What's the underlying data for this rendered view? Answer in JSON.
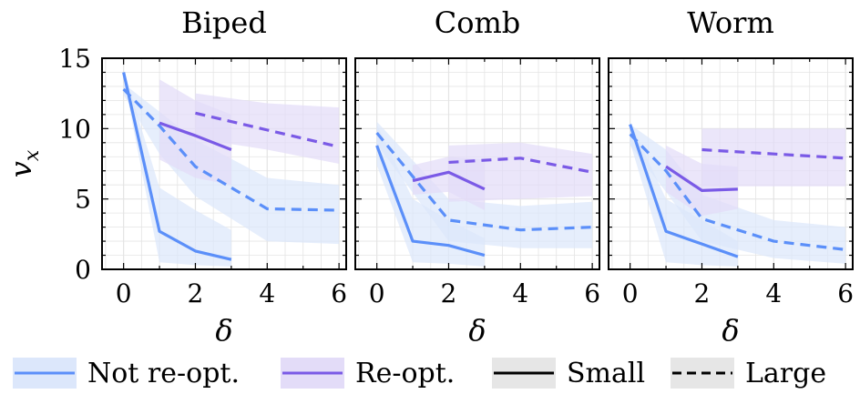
{
  "chart_data": {
    "type": "line",
    "ylabel": "v",
    "ylabel_sub": "x",
    "xlabel": "δ",
    "xlim": [
      -0.6,
      6.2
    ],
    "ylim": [
      0,
      15
    ],
    "xticks": [
      "0",
      "2",
      "4",
      "6"
    ],
    "yticks": [
      "0",
      "5",
      "10",
      "15"
    ],
    "grid": true,
    "legend_position": "bottom",
    "colors": {
      "not_reopt": "#5b8ff9",
      "reopt": "#7a5ae6",
      "not_reopt_band": "#dce7fb",
      "reopt_band": "#e3dcf8",
      "legend_box": "#e6e6e6"
    },
    "legend": {
      "not_reopt": "Not re-opt.",
      "reopt": "Re-opt.",
      "small": "Small",
      "large": "Large"
    },
    "panels": [
      {
        "title": "Biped",
        "series": [
          {
            "group": "not_reopt",
            "size": "small",
            "x": [
              0,
              1,
              2,
              3
            ],
            "y": [
              14.0,
              2.7,
              1.3,
              0.7
            ],
            "upper": [
              14.2,
              5.8,
              4.2,
              2.8
            ],
            "lower": [
              13.6,
              0.5,
              0.3,
              0.2
            ]
          },
          {
            "group": "not_reopt",
            "size": "large",
            "x": [
              0,
              1,
              2,
              4,
              6
            ],
            "y": [
              12.8,
              10.2,
              7.3,
              4.3,
              4.2
            ],
            "upper": [
              13.2,
              11.2,
              9.2,
              6.5,
              6.0
            ],
            "lower": [
              12.4,
              8.2,
              5.2,
              2.0,
              1.8
            ]
          },
          {
            "group": "reopt",
            "size": "small",
            "x": [
              1,
              2,
              3
            ],
            "y": [
              10.4,
              9.5,
              8.5
            ],
            "upper": [
              13.5,
              12.0,
              11.0
            ],
            "lower": [
              7.8,
              6.5,
              6.0
            ]
          },
          {
            "group": "reopt",
            "size": "large",
            "x": [
              2,
              4,
              6
            ],
            "y": [
              11.1,
              9.9,
              8.7
            ],
            "upper": [
              12.5,
              11.8,
              11.5
            ],
            "lower": [
              9.3,
              8.5,
              7.5
            ]
          }
        ]
      },
      {
        "title": "Comb",
        "series": [
          {
            "group": "not_reopt",
            "size": "small",
            "x": [
              0,
              1,
              2,
              3
            ],
            "y": [
              8.8,
              2.0,
              1.7,
              1.0
            ],
            "upper": [
              10.3,
              5.0,
              3.5,
              2.2
            ],
            "lower": [
              7.4,
              0.5,
              0.4,
              0.2
            ]
          },
          {
            "group": "not_reopt",
            "size": "large",
            "x": [
              0,
              2,
              4,
              6
            ],
            "y": [
              9.7,
              3.5,
              2.8,
              3.0
            ],
            "upper": [
              10.5,
              5.0,
              4.5,
              4.8
            ],
            "lower": [
              8.9,
              2.0,
              1.5,
              1.5
            ]
          },
          {
            "group": "reopt",
            "size": "small",
            "x": [
              1,
              2,
              3
            ],
            "y": [
              6.3,
              6.9,
              5.7
            ],
            "upper": [
              7.4,
              8.0,
              7.8
            ],
            "lower": [
              5.3,
              5.5,
              4.2
            ]
          },
          {
            "group": "reopt",
            "size": "large",
            "x": [
              2,
              4,
              6
            ],
            "y": [
              7.6,
              7.9,
              6.9
            ],
            "upper": [
              8.8,
              9.0,
              8.2
            ],
            "lower": [
              4.8,
              5.0,
              5.2
            ]
          }
        ]
      },
      {
        "title": "Worm",
        "series": [
          {
            "group": "not_reopt",
            "size": "small",
            "x": [
              0,
              1,
              2,
              3
            ],
            "y": [
              10.3,
              2.7,
              1.8,
              0.9
            ],
            "upper": [
              10.5,
              5.0,
              3.5,
              2.0
            ],
            "lower": [
              9.0,
              0.5,
              0.3,
              0.2
            ]
          },
          {
            "group": "not_reopt",
            "size": "large",
            "x": [
              0,
              1,
              2,
              4,
              6
            ],
            "y": [
              9.6,
              7.0,
              3.6,
              2.0,
              1.4
            ],
            "upper": [
              10.3,
              8.5,
              5.3,
              3.5,
              3.0
            ],
            "lower": [
              8.8,
              5.5,
              2.0,
              0.8,
              0.4
            ]
          },
          {
            "group": "reopt",
            "size": "small",
            "x": [
              1,
              2,
              3
            ],
            "y": [
              7.3,
              5.6,
              5.7
            ],
            "upper": [
              8.8,
              7.5,
              7.3
            ],
            "lower": [
              5.5,
              3.8,
              4.3
            ]
          },
          {
            "group": "reopt",
            "size": "large",
            "x": [
              2,
              4,
              6
            ],
            "y": [
              8.5,
              8.2,
              7.9
            ],
            "upper": [
              10.0,
              10.0,
              10.0
            ],
            "lower": [
              5.9,
              5.9,
              5.9
            ]
          }
        ]
      }
    ]
  }
}
